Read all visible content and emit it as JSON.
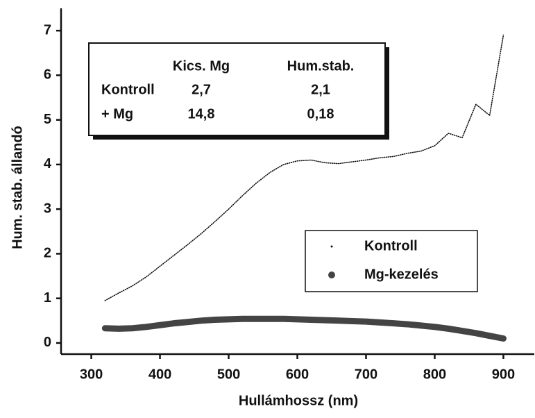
{
  "chart_data": {
    "type": "line",
    "x_label": "Hullámhossz (nm)",
    "y_label": "Hum. stab. állandó",
    "x": [
      320,
      340,
      360,
      380,
      400,
      420,
      440,
      460,
      480,
      500,
      520,
      540,
      560,
      580,
      600,
      620,
      640,
      660,
      680,
      700,
      720,
      740,
      760,
      780,
      800,
      820,
      840,
      860,
      880,
      900
    ],
    "series": [
      {
        "name": "Kontroll",
        "color": "#111111",
        "values": [
          0.95,
          1.12,
          1.28,
          1.48,
          1.72,
          1.96,
          2.2,
          2.45,
          2.72,
          3.0,
          3.3,
          3.58,
          3.82,
          4.0,
          4.08,
          4.1,
          4.04,
          4.02,
          4.06,
          4.1,
          4.15,
          4.18,
          4.25,
          4.3,
          4.42,
          4.7,
          4.6,
          5.35,
          5.1,
          6.9
        ]
      },
      {
        "name": "Mg-kezelés",
        "color": "#444444",
        "values": [
          0.33,
          0.32,
          0.33,
          0.36,
          0.4,
          0.44,
          0.47,
          0.5,
          0.52,
          0.53,
          0.54,
          0.54,
          0.54,
          0.54,
          0.53,
          0.52,
          0.51,
          0.5,
          0.49,
          0.48,
          0.46,
          0.44,
          0.42,
          0.39,
          0.36,
          0.32,
          0.27,
          0.22,
          0.16,
          0.1
        ]
      }
    ],
    "xlim": [
      256,
      945
    ],
    "ylim": [
      -0.25,
      7.5
    ],
    "xticks": [
      300,
      400,
      500,
      600,
      700,
      800,
      900
    ],
    "yticks": [
      0,
      1,
      2,
      3,
      4,
      5,
      6,
      7
    ],
    "legend": "right",
    "table": {
      "columns": [
        "Kics. Mg",
        "Hum.stab."
      ],
      "rows": [
        {
          "label": "Kontroll",
          "cells": [
            "2,7",
            "2,1"
          ]
        },
        {
          "label": "+ Mg",
          "cells": [
            "14,8",
            "0,18"
          ]
        }
      ]
    }
  }
}
